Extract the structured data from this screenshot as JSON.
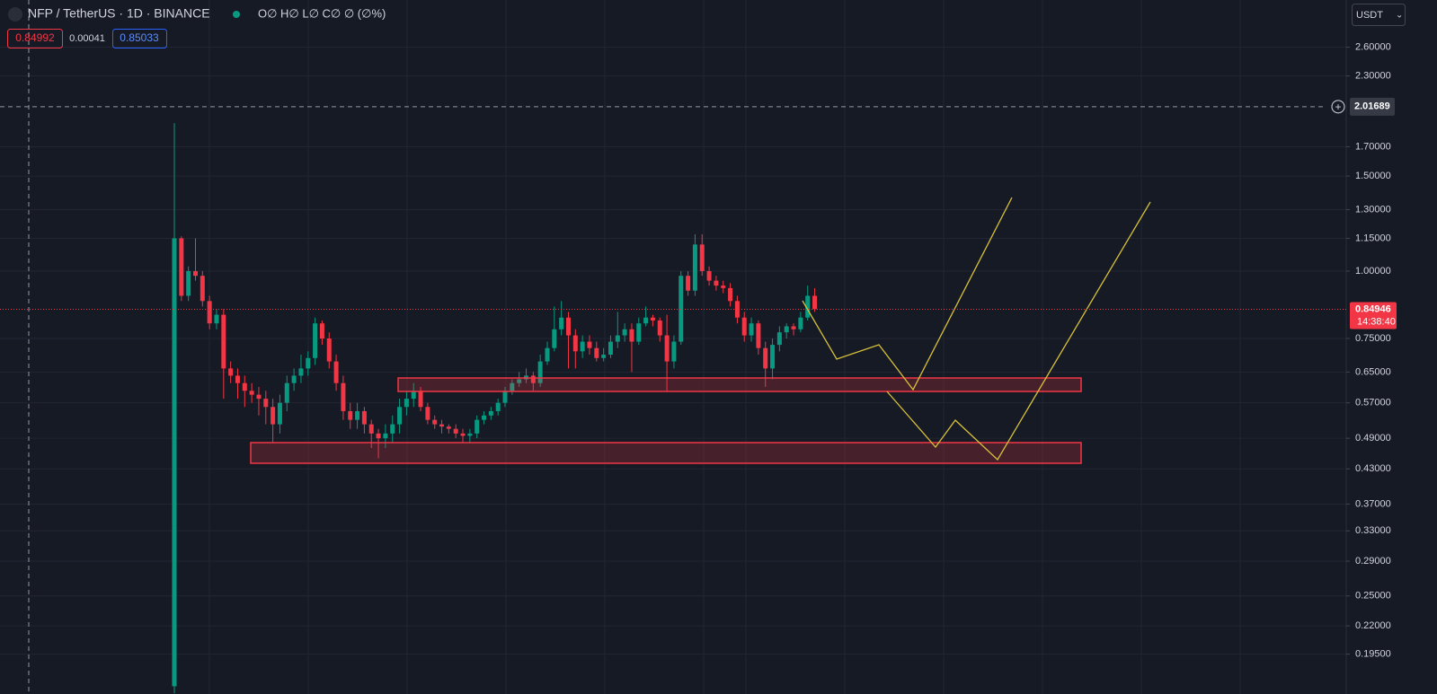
{
  "chart_data": {
    "type": "candlestick",
    "symbol": "NFP / TetherUS · 1D · BINANCE",
    "ohlc_legend": "O∅ H∅ L∅ C∅ ∅ (∅%)",
    "bid": "0.84992",
    "spread": "0.00041",
    "ask": "0.85033",
    "currency": "USDT",
    "crosshair": {
      "value": 2.01689,
      "label": "2.01689"
    },
    "last_price": {
      "value": 0.84946,
      "label": "0.84946"
    },
    "countdown": "14:38:40",
    "up_color": "#089981",
    "down_color": "#f23645",
    "log_scale": true,
    "grid": true,
    "ylim": [
      0.1645,
      3.18
    ],
    "yticks": [
      {
        "value": 2.6,
        "label": "2.60000"
      },
      {
        "value": 2.3,
        "label": "2.30000"
      },
      {
        "value": 1.7,
        "label": "1.70000"
      },
      {
        "value": 1.5,
        "label": "1.50000"
      },
      {
        "value": 1.3,
        "label": "1.30000"
      },
      {
        "value": 1.15,
        "label": "1.15000"
      },
      {
        "value": 1.0,
        "label": "1.00000"
      },
      {
        "value": 0.75,
        "label": "0.75000"
      },
      {
        "value": 0.65,
        "label": "0.65000"
      },
      {
        "value": 0.57,
        "label": "0.57000"
      },
      {
        "value": 0.49,
        "label": "0.49000"
      },
      {
        "value": 0.43,
        "label": "0.43000"
      },
      {
        "value": 0.37,
        "label": "0.37000"
      },
      {
        "value": 0.33,
        "label": "0.33000"
      },
      {
        "value": 0.29,
        "label": "0.29000"
      },
      {
        "value": 0.25,
        "label": "0.25000"
      },
      {
        "value": 0.22,
        "label": "0.22000"
      },
      {
        "value": 0.195,
        "label": "0.19500"
      }
    ],
    "open": [
      0.17,
      1.15,
      0.9,
      1.0,
      0.98,
      0.88,
      0.8,
      0.83,
      0.66,
      0.64,
      0.62,
      0.6,
      0.59,
      0.58,
      0.56,
      0.52,
      0.57,
      0.62,
      0.64,
      0.66,
      0.69,
      0.8,
      0.75,
      0.68,
      0.62,
      0.55,
      0.53,
      0.55,
      0.52,
      0.5,
      0.49,
      0.5,
      0.52,
      0.56,
      0.58,
      0.6,
      0.56,
      0.53,
      0.52,
      0.515,
      0.51,
      0.5,
      0.495,
      0.5,
      0.53,
      0.54,
      0.55,
      0.57,
      0.6,
      0.62,
      0.63,
      0.64,
      0.62,
      0.68,
      0.72,
      0.78,
      0.82,
      0.76,
      0.71,
      0.74,
      0.72,
      0.69,
      0.7,
      0.74,
      0.76,
      0.78,
      0.74,
      0.8,
      0.82,
      0.81,
      0.76,
      0.68,
      0.74,
      0.98,
      0.92,
      1.12,
      1.0,
      0.96,
      0.94,
      0.93,
      0.88,
      0.82,
      0.76,
      0.8,
      0.72,
      0.66,
      0.73,
      0.77,
      0.79,
      0.78,
      0.82,
      0.9
    ],
    "high": [
      1.88,
      1.16,
      1.02,
      1.15,
      1.0,
      0.9,
      0.85,
      0.85,
      0.68,
      0.66,
      0.64,
      0.62,
      0.61,
      0.6,
      0.58,
      0.59,
      0.64,
      0.66,
      0.7,
      0.71,
      0.82,
      0.81,
      0.77,
      0.7,
      0.64,
      0.57,
      0.57,
      0.56,
      0.53,
      0.51,
      0.52,
      0.54,
      0.58,
      0.6,
      0.62,
      0.61,
      0.57,
      0.54,
      0.53,
      0.52,
      0.52,
      0.51,
      0.51,
      0.54,
      0.55,
      0.56,
      0.58,
      0.61,
      0.63,
      0.65,
      0.66,
      0.65,
      0.7,
      0.74,
      0.86,
      0.88,
      0.84,
      0.78,
      0.76,
      0.76,
      0.74,
      0.72,
      0.76,
      0.84,
      0.8,
      0.8,
      0.82,
      0.86,
      0.83,
      0.82,
      0.83,
      0.76,
      1.0,
      1.0,
      1.17,
      1.17,
      1.02,
      0.98,
      0.96,
      0.95,
      0.9,
      0.84,
      0.82,
      0.81,
      0.74,
      0.75,
      0.79,
      0.8,
      0.8,
      0.84,
      0.94,
      0.93
    ],
    "low": [
      0.165,
      0.88,
      0.88,
      0.96,
      0.86,
      0.78,
      0.78,
      0.58,
      0.62,
      0.58,
      0.56,
      0.57,
      0.54,
      0.52,
      0.48,
      0.5,
      0.55,
      0.6,
      0.62,
      0.64,
      0.67,
      0.73,
      0.66,
      0.6,
      0.53,
      0.51,
      0.51,
      0.5,
      0.47,
      0.45,
      0.47,
      0.48,
      0.5,
      0.54,
      0.56,
      0.55,
      0.52,
      0.51,
      0.5,
      0.5,
      0.49,
      0.48,
      0.48,
      0.49,
      0.52,
      0.53,
      0.54,
      0.56,
      0.59,
      0.61,
      0.62,
      0.6,
      0.61,
      0.67,
      0.71,
      0.76,
      0.66,
      0.66,
      0.69,
      0.7,
      0.68,
      0.68,
      0.69,
      0.72,
      0.74,
      0.65,
      0.73,
      0.79,
      0.79,
      0.74,
      0.6,
      0.66,
      0.73,
      0.9,
      0.9,
      0.98,
      0.94,
      0.92,
      0.91,
      0.86,
      0.8,
      0.74,
      0.74,
      0.7,
      0.61,
      0.63,
      0.71,
      0.75,
      0.76,
      0.77,
      0.81,
      0.84
    ],
    "close": [
      1.15,
      0.9,
      1.0,
      0.98,
      0.88,
      0.8,
      0.83,
      0.66,
      0.64,
      0.62,
      0.6,
      0.59,
      0.58,
      0.56,
      0.52,
      0.57,
      0.62,
      0.64,
      0.66,
      0.69,
      0.8,
      0.75,
      0.68,
      0.62,
      0.55,
      0.53,
      0.55,
      0.52,
      0.5,
      0.49,
      0.5,
      0.52,
      0.56,
      0.58,
      0.6,
      0.56,
      0.53,
      0.52,
      0.515,
      0.51,
      0.5,
      0.495,
      0.5,
      0.53,
      0.54,
      0.55,
      0.57,
      0.6,
      0.62,
      0.63,
      0.64,
      0.62,
      0.68,
      0.72,
      0.78,
      0.82,
      0.76,
      0.71,
      0.74,
      0.72,
      0.69,
      0.7,
      0.74,
      0.76,
      0.78,
      0.74,
      0.8,
      0.82,
      0.81,
      0.76,
      0.68,
      0.74,
      0.98,
      0.92,
      1.12,
      1.0,
      0.96,
      0.94,
      0.93,
      0.88,
      0.82,
      0.76,
      0.8,
      0.72,
      0.66,
      0.73,
      0.77,
      0.79,
      0.78,
      0.82,
      0.9,
      0.85
    ]
  }
}
